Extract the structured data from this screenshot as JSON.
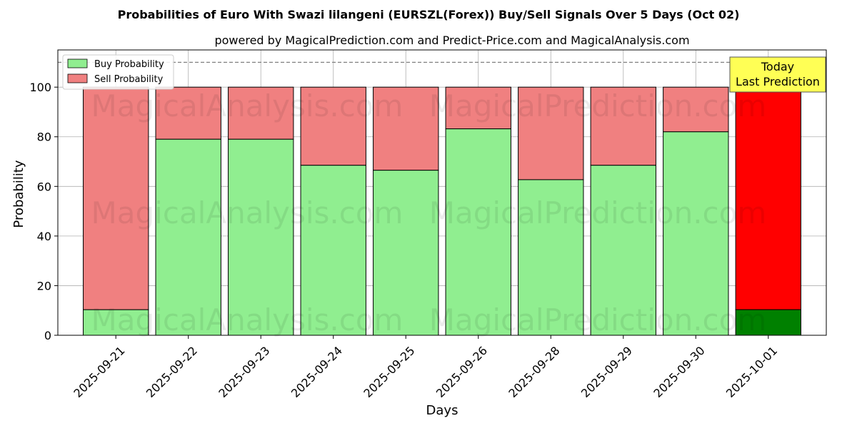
{
  "chart_data": {
    "type": "bar",
    "stacked": true,
    "title": "Probabilities of Euro With Swazi lilangeni (EURSZL(Forex)) Buy/Sell Signals Over 5 Days (Oct 02)",
    "subtitle": "powered by MagicalPrediction.com and Predict-Price.com and MagicalAnalysis.com",
    "xlabel": "Days",
    "ylabel": "Probability",
    "ylim": [
      0,
      115
    ],
    "yticks": [
      0,
      20,
      40,
      60,
      80,
      100
    ],
    "reference_line": 110,
    "grid": true,
    "legend_position": "top-left",
    "categories": [
      "2025-09-21",
      "2025-09-22",
      "2025-09-23",
      "2025-09-24",
      "2025-09-25",
      "2025-09-26",
      "2025-09-28",
      "2025-09-29",
      "2025-09-30",
      "2025-10-01"
    ],
    "series": [
      {
        "name": "Buy Probability",
        "values": [
          10.3,
          79.0,
          79.0,
          68.5,
          66.5,
          83.2,
          62.7,
          68.5,
          82.0,
          10.3
        ],
        "color": "#90ee90",
        "highlight_color": "#008000"
      },
      {
        "name": "Sell Probability",
        "values": [
          89.7,
          21.0,
          21.0,
          31.5,
          33.5,
          16.8,
          37.3,
          31.5,
          18.0,
          89.7
        ],
        "color": "#f08080",
        "highlight_color": "#ff0000"
      }
    ],
    "highlight_index": 9,
    "annotation": {
      "line1": "Today",
      "line2": "Last Prediction",
      "color": "#ffff55"
    },
    "watermarks": [
      "MagicalAnalysis.com",
      "MagicalPrediction.com"
    ]
  }
}
